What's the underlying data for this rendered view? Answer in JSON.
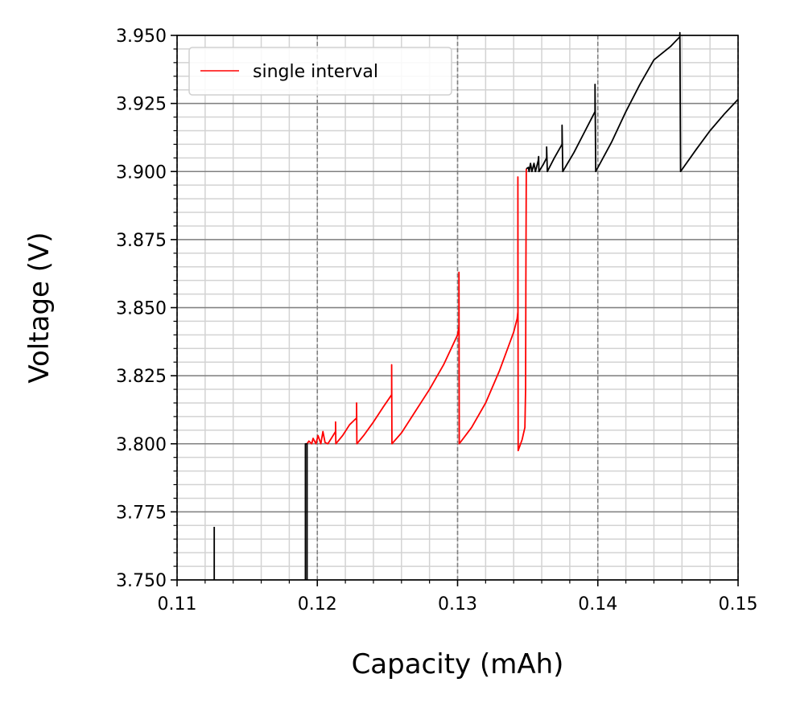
{
  "chart_data": {
    "type": "line",
    "title": "",
    "xlabel": "Capacity (mAh)",
    "ylabel": "Voltage (V)",
    "xlim": [
      0.11,
      0.15
    ],
    "ylim": [
      3.75,
      3.95
    ],
    "xticks": [
      "0.11",
      "0.12",
      "0.13",
      "0.14",
      "0.15"
    ],
    "yticks": [
      "3.750",
      "3.775",
      "3.800",
      "3.825",
      "3.850",
      "3.875",
      "3.900",
      "3.925",
      "3.950"
    ],
    "grid": "major and minor",
    "legend_position": "top-left",
    "legend": [
      "single interval"
    ],
    "series": [
      {
        "name": "single interval",
        "color": "#ff0000",
        "segments": [
          [
            [
              0.11927,
              3.8
            ],
            [
              0.1194,
              3.801
            ],
            [
              0.1196,
              3.8
            ],
            [
              0.1197,
              3.802
            ],
            [
              0.1199,
              3.8
            ],
            [
              0.12005,
              3.803
            ],
            [
              0.12025,
              3.8
            ],
            [
              0.1204,
              3.8045
            ],
            [
              0.12055,
              3.8005
            ],
            [
              0.12075,
              3.8
            ],
            [
              0.121,
              3.802
            ],
            [
              0.1213,
              3.8045
            ],
            [
              0.1213,
              3.808
            ],
            [
              0.12132,
              3.8
            ],
            [
              0.1218,
              3.803
            ],
            [
              0.1223,
              3.807
            ],
            [
              0.1228,
              3.8095
            ],
            [
              0.1228,
              3.815
            ],
            [
              0.12282,
              3.8
            ],
            [
              0.1233,
              3.803
            ],
            [
              0.124,
              3.808
            ],
            [
              0.1247,
              3.8135
            ],
            [
              0.1253,
              3.818
            ],
            [
              0.1253,
              3.829
            ],
            [
              0.12532,
              3.8
            ],
            [
              0.126,
              3.804
            ],
            [
              0.127,
              3.812
            ],
            [
              0.128,
              3.82
            ],
            [
              0.129,
              3.829
            ],
            [
              0.13,
              3.84
            ],
            [
              0.1301,
              3.843
            ],
            [
              0.1301,
              3.863
            ],
            [
              0.13012,
              3.8
            ],
            [
              0.131,
              3.806
            ],
            [
              0.132,
              3.815
            ],
            [
              0.133,
              3.827
            ],
            [
              0.134,
              3.841
            ],
            [
              0.13425,
              3.846
            ],
            [
              0.1343,
              3.8485
            ],
            [
              0.1343,
              3.898
            ],
            [
              0.13432,
              3.7975
            ],
            [
              0.1346,
              3.8015
            ],
            [
              0.1348,
              3.806
            ],
            [
              0.13485,
              3.82
            ],
            [
              0.13487,
              3.86
            ],
            [
              0.1349,
              3.901
            ]
          ]
        ]
      },
      {
        "name": "",
        "color": "#000000",
        "segments": [
          [
            [
              0.11265,
              3.75
            ],
            [
              0.11265,
              3.7695
            ]
          ],
          [
            [
              0.11915,
              3.75
            ],
            [
              0.11915,
              3.8
            ],
            [
              0.11927,
              3.8
            ],
            [
              0.11927,
              3.75
            ]
          ],
          [
            [
              0.1349,
              3.901
            ],
            [
              0.13505,
              3.9015
            ],
            [
              0.1351,
              3.9
            ],
            [
              0.1352,
              3.903
            ],
            [
              0.1353,
              3.9
            ],
            [
              0.13545,
              3.903
            ],
            [
              0.13555,
              3.9
            ],
            [
              0.13575,
              3.904
            ],
            [
              0.13578,
              3.9055
            ],
            [
              0.1358,
              3.9
            ],
            [
              0.1361,
              3.9025
            ],
            [
              0.13635,
              3.905
            ],
            [
              0.13635,
              3.909
            ],
            [
              0.1364,
              3.9
            ],
            [
              0.1369,
              3.905
            ],
            [
              0.13745,
              3.91
            ],
            [
              0.13745,
              3.917
            ],
            [
              0.1375,
              3.9
            ],
            [
              0.1383,
              3.907
            ],
            [
              0.139,
              3.914
            ],
            [
              0.1398,
              3.922
            ],
            [
              0.1398,
              3.932
            ],
            [
              0.13985,
              3.9
            ],
            [
              0.141,
              3.911
            ],
            [
              0.142,
              3.922
            ],
            [
              0.143,
              3.932
            ],
            [
              0.144,
              3.941
            ],
            [
              0.1452,
              3.946
            ],
            [
              0.14585,
              3.9495
            ],
            [
              0.14585,
              3.951
            ],
            [
              0.1459,
              3.9
            ],
            [
              0.147,
              3.908
            ],
            [
              0.148,
              3.915
            ],
            [
              0.149,
              3.921
            ],
            [
              0.15,
              3.9265
            ]
          ]
        ]
      }
    ]
  }
}
